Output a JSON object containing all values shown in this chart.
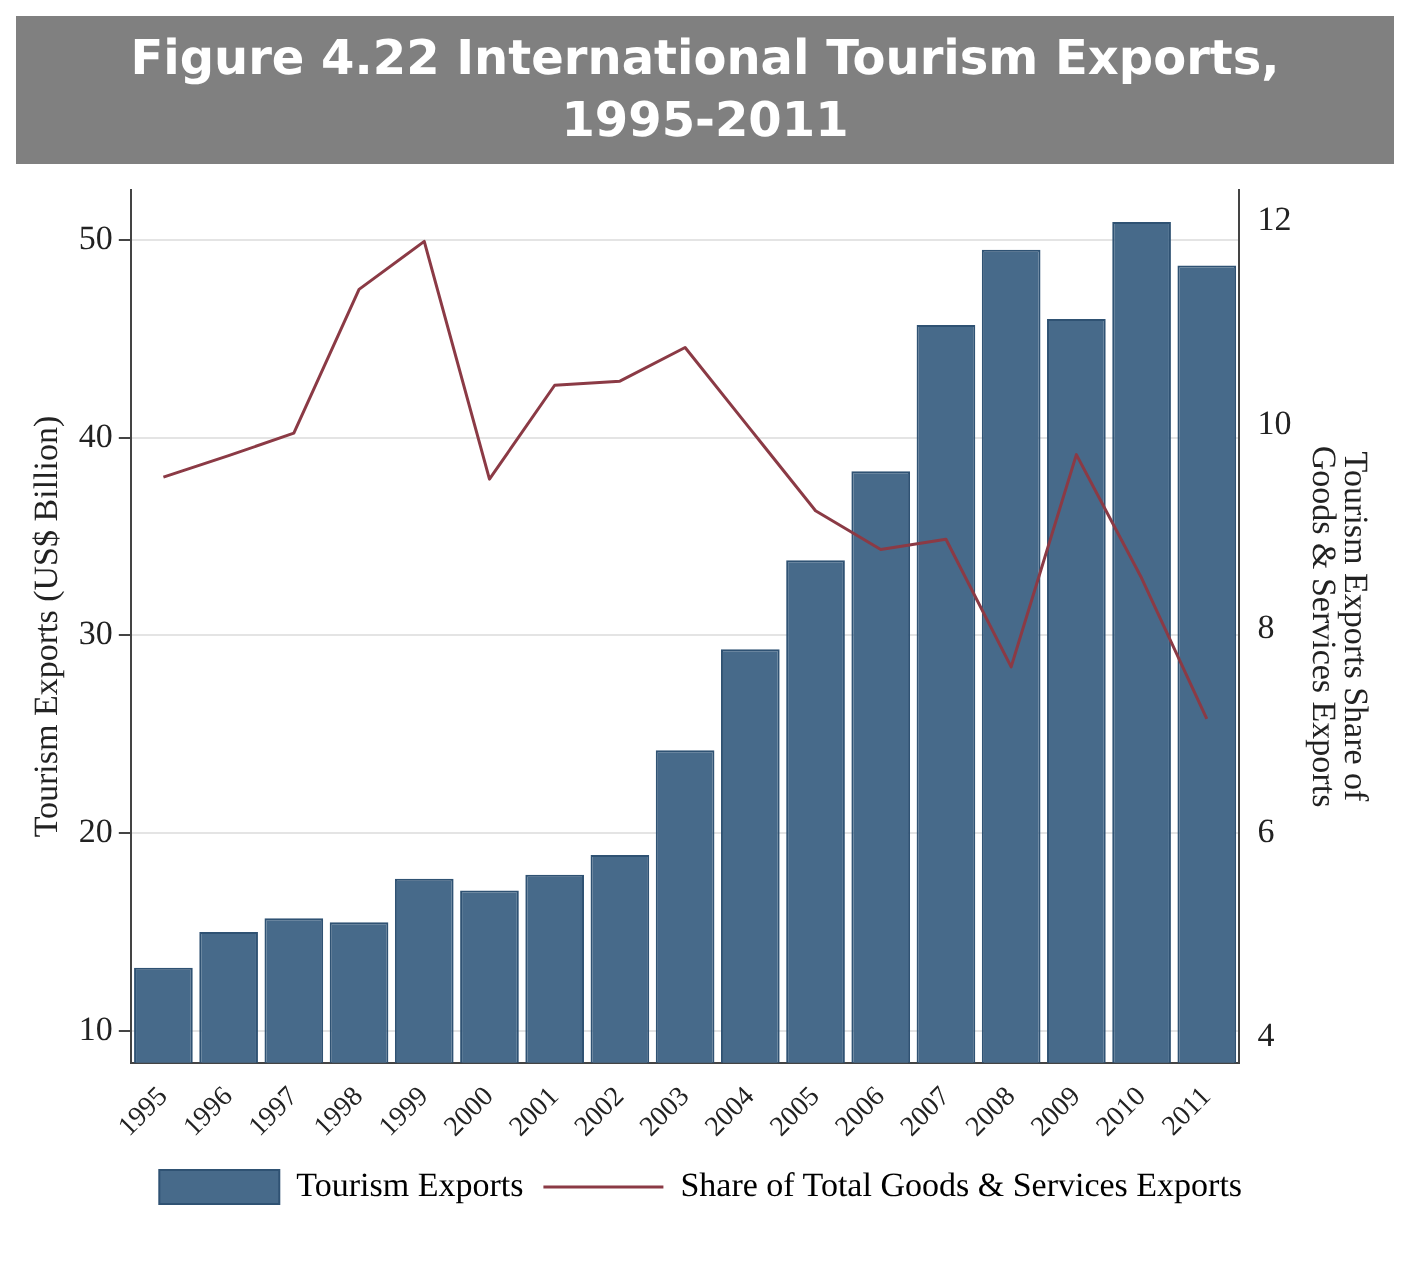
{
  "chart_data": {
    "type": "bar",
    "title": "Figure 4.22 International Tourism Exports, 1995-2011",
    "categories": [
      "1995",
      "1996",
      "1997",
      "1998",
      "1999",
      "2000",
      "2001",
      "2002",
      "2003",
      "2004",
      "2005",
      "2006",
      "2007",
      "2008",
      "2009",
      "2010",
      "2011"
    ],
    "series": [
      {
        "name": "Tourism Exports",
        "color": "#476a8a",
        "values": [
          13.2,
          15.0,
          15.7,
          15.5,
          17.7,
          17.1,
          17.9,
          18.9,
          24.2,
          29.3,
          33.8,
          38.3,
          45.7,
          49.5,
          46.0,
          50.9,
          48.7
        ]
      },
      {
        "name": "Share of Total Goods & Services Exports",
        "type": "line",
        "axis": "y2",
        "color": "#8b3a45",
        "values": [
          9.49,
          9.7,
          9.92,
          11.33,
          11.8,
          9.47,
          10.39,
          10.43,
          10.76,
          9.96,
          9.16,
          8.78,
          8.88,
          7.63,
          9.71,
          8.5,
          7.12
        ]
      }
    ],
    "ylabel": "Tourism Exports (US$ Billion)",
    "y2label": "Tourism Exports Share of Goods & Services Exports",
    "ylim": [
      8.4,
      52.5
    ],
    "yticks": [
      10,
      20,
      30,
      40,
      50
    ],
    "y2lim": [
      3.75,
      12.3
    ],
    "y2ticks": [
      4,
      6,
      8,
      10,
      12
    ],
    "grid": "y",
    "legend": "bottom",
    "marker": "none"
  }
}
